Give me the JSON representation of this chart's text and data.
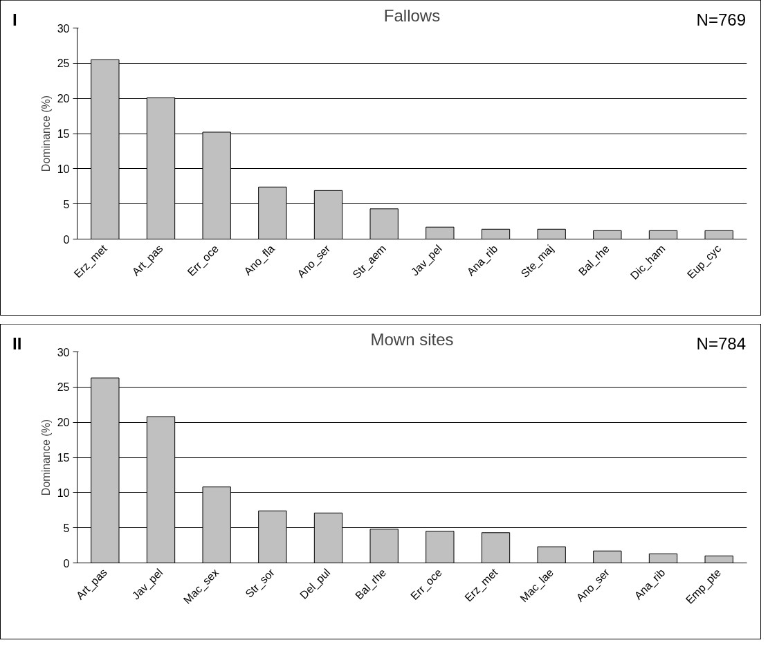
{
  "chart_data": [
    {
      "type": "bar",
      "title": "Fallows",
      "ylabel": "Dominance (%)",
      "annotations": [
        "I",
        "N=769"
      ],
      "categories": [
        "Erz_met",
        "Art_pas",
        "Err_oce",
        "Ano_fla",
        "Ano_ser",
        "Str_aem",
        "Jav_pel",
        "Ana_rib",
        "Ste_maj",
        "Bal_rhe",
        "Dic_ham",
        "Eup_cyc"
      ],
      "values": [
        25.5,
        20.1,
        15.2,
        7.4,
        6.9,
        4.3,
        1.7,
        1.4,
        1.4,
        1.2,
        1.2,
        1.2
      ],
      "color": "#c0c0c0",
      "ylim": [
        0,
        30
      ],
      "yticks": [
        0,
        5,
        10,
        15,
        20,
        25,
        30
      ],
      "grid": "y"
    },
    {
      "type": "bar",
      "title": "Mown sites",
      "ylabel": "Dominance (%)",
      "annotations": [
        "II",
        "N=784"
      ],
      "categories": [
        "Art_pas",
        "Jav_pel",
        "Mac_sex",
        "Str_sor",
        "Del_pul",
        "Bal_rhe",
        "Err_oce",
        "Erz_met",
        "Mac_lae",
        "Ano_ser",
        "Ana_rib",
        "Emp_pte"
      ],
      "values": [
        26.3,
        20.8,
        10.8,
        7.4,
        7.1,
        4.8,
        4.5,
        4.3,
        2.3,
        1.7,
        1.3,
        1.0
      ],
      "color": "#c0c0c0",
      "ylim": [
        0,
        30
      ],
      "yticks": [
        0,
        5,
        10,
        15,
        20,
        25,
        30
      ],
      "grid": "y"
    }
  ]
}
